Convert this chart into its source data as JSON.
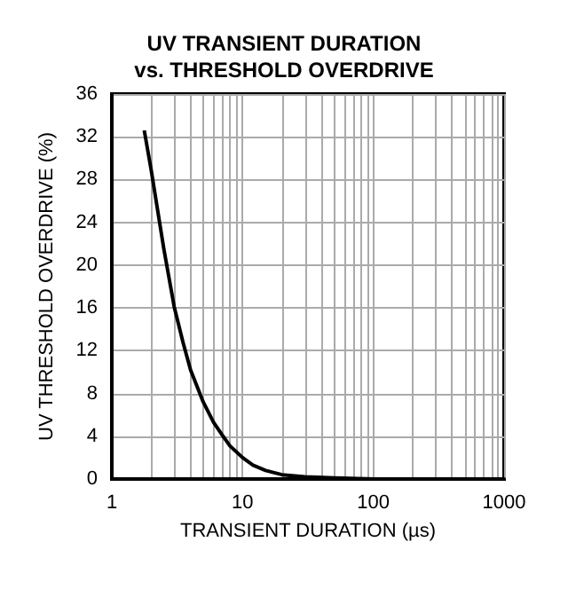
{
  "chart_data": {
    "type": "line",
    "title": "UV TRANSIENT DURATION\nvs. THRESHOLD OVERDRIVE",
    "xlabel": "TRANSIENT DURATION (µs)",
    "ylabel": "UV THRESHOLD OVERDRIVE (%)",
    "log": "x",
    "grid": true,
    "marker": "none",
    "line_style": "solid",
    "xlim": [
      1,
      1000
    ],
    "xticks": [
      1,
      {
        "value": 2,
        "label": null
      },
      {
        "value": 3,
        "label": null
      },
      {
        "value": 4,
        "label": null
      },
      {
        "value": 5,
        "label": null
      },
      {
        "value": 6,
        "label": null
      },
      {
        "value": 7,
        "label": null
      },
      {
        "value": 8,
        "label": null
      },
      {
        "value": 9,
        "label": null
      },
      10,
      {
        "value": 20,
        "label": null
      },
      {
        "value": 30,
        "label": null
      },
      {
        "value": 40,
        "label": null
      },
      {
        "value": 50,
        "label": null
      },
      {
        "value": 60,
        "label": null
      },
      {
        "value": 70,
        "label": null
      },
      {
        "value": 80,
        "label": null
      },
      {
        "value": 90,
        "label": null
      },
      100,
      {
        "value": 200,
        "label": null
      },
      {
        "value": 300,
        "label": null
      },
      {
        "value": 400,
        "label": null
      },
      {
        "value": 500,
        "label": null
      },
      {
        "value": 600,
        "label": null
      },
      {
        "value": 700,
        "label": null
      },
      {
        "value": 800,
        "label": null
      },
      {
        "value": 900,
        "label": null
      },
      1000
    ],
    "ylim": [
      0,
      36
    ],
    "yticks": [
      0,
      4,
      8,
      12,
      16,
      20,
      24,
      28,
      32,
      36
    ],
    "series": [
      {
        "color": "#000000",
        "x": [
          1.77,
          2,
          2.5,
          3,
          3.5,
          4,
          5,
          6,
          7,
          8,
          10,
          12,
          15,
          20,
          30,
          50,
          100,
          200,
          330
        ],
        "values": [
          32.6,
          28.9,
          21.5,
          16.1,
          12.8,
          10.2,
          7.2,
          5.3,
          4.1,
          3.1,
          2.0,
          1.3,
          0.8,
          0.4,
          0.2,
          0.1,
          0,
          0,
          0
        ]
      }
    ]
  }
}
